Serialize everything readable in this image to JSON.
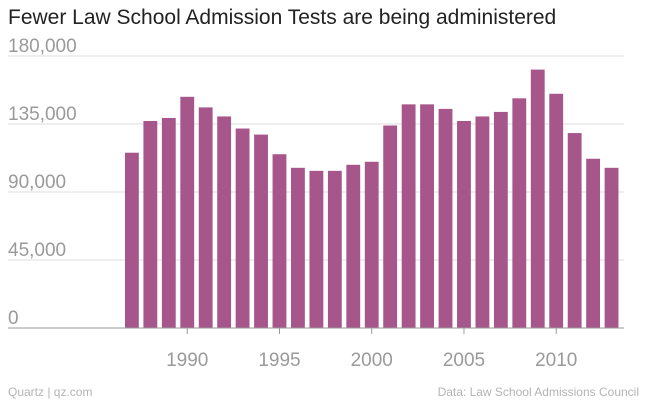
{
  "chart_data": {
    "type": "bar",
    "title": "Fewer Law School Admission Tests are being administered",
    "xlabel": "",
    "ylabel": "",
    "x_tick_labels": [
      "1990",
      "1995",
      "2000",
      "2005",
      "2010"
    ],
    "y_tick_labels": [
      "0",
      "45,000",
      "90,000",
      "135,000",
      "180,000"
    ],
    "y_ticks": [
      0,
      45000,
      90000,
      135000,
      180000
    ],
    "ylim": [
      0,
      180000
    ],
    "xlim": [
      1985,
      2014
    ],
    "grid": true,
    "bar_color": "#a6568a",
    "categories": [
      1987,
      1988,
      1989,
      1990,
      1991,
      1992,
      1993,
      1994,
      1995,
      1996,
      1997,
      1998,
      1999,
      2000,
      2001,
      2002,
      2003,
      2004,
      2005,
      2006,
      2007,
      2008,
      2009,
      2010,
      2011,
      2012,
      2013
    ],
    "values": [
      116000,
      137000,
      139000,
      153000,
      146000,
      140000,
      132000,
      128000,
      115000,
      106000,
      104000,
      104000,
      108000,
      110000,
      134000,
      148000,
      148000,
      145000,
      137000,
      140000,
      143000,
      152000,
      171000,
      155000,
      129000,
      112000,
      106000
    ]
  },
  "footer": {
    "source_left": "Quartz | qz.com",
    "source_right": "Data: Law School Admissions Council"
  },
  "colors": {
    "bar": "#a6568a",
    "grid": "#dcdcdc",
    "axis": "#9a9a9a",
    "tick_text": "#9a9a9a",
    "title": "#222222"
  }
}
